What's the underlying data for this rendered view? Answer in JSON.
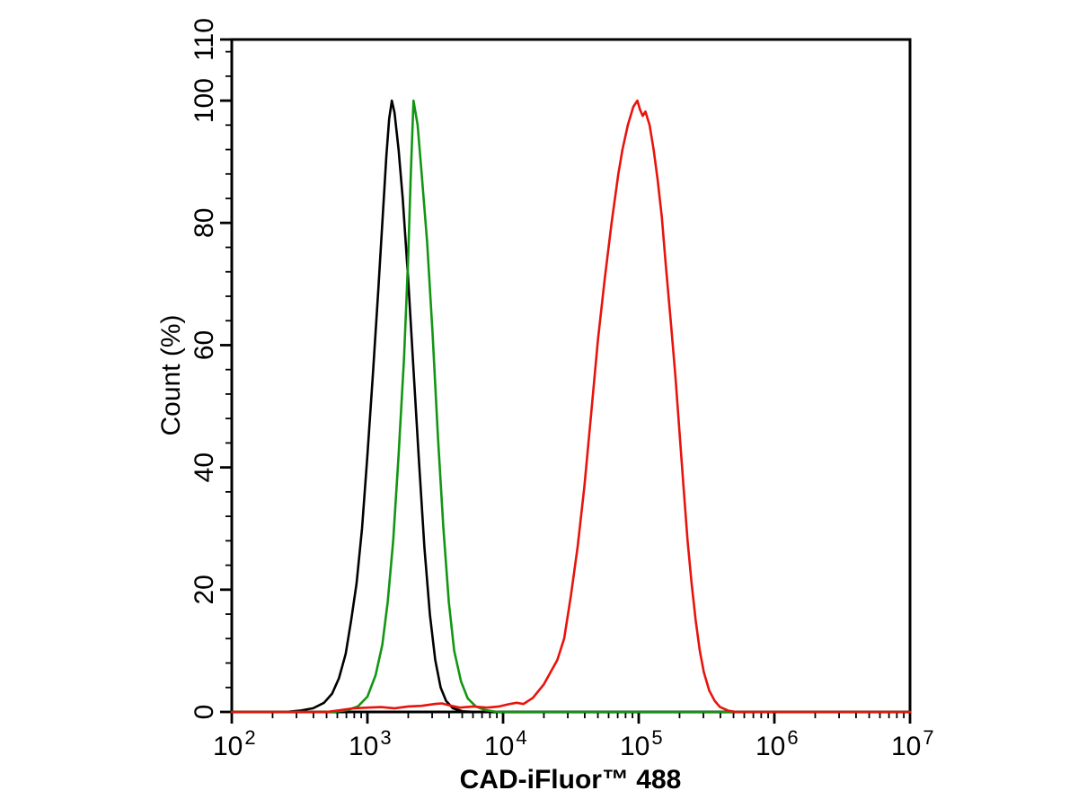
{
  "figure": {
    "background_color": "#ffffff",
    "axis_color": "#000000"
  },
  "chart_data": {
    "type": "line",
    "subtype": "flow-cytometry-histogram",
    "title": "",
    "xlabel": "CAD-iFluor™ 488",
    "ylabel": "Count  (%)",
    "x_scale": "log10",
    "x_range_exponents": [
      2,
      7
    ],
    "x_major_tick_exponents": [
      2,
      3,
      4,
      5,
      6,
      7
    ],
    "x_tick_base": "10",
    "x_minor_ticks": "log positions 2-9 within each decade",
    "ylim": [
      0,
      110
    ],
    "y_major_ticks": [
      0,
      20,
      40,
      60,
      80,
      100,
      110
    ],
    "y_minor_step": 4,
    "grid": "off",
    "legend": "none",
    "frame": "full box, ticks outward on left and bottom only",
    "series": [
      {
        "name": "black-curve",
        "color": "#000000",
        "peak_x": 1500,
        "peak_y": 100,
        "points_logx_y": [
          [
            2.0,
            0
          ],
          [
            2.4,
            0
          ],
          [
            2.5,
            0.2
          ],
          [
            2.6,
            0.6
          ],
          [
            2.68,
            1.5
          ],
          [
            2.74,
            3
          ],
          [
            2.79,
            5.5
          ],
          [
            2.84,
            9.5
          ],
          [
            2.88,
            15
          ],
          [
            2.92,
            21
          ],
          [
            2.96,
            30
          ],
          [
            3.0,
            42
          ],
          [
            3.04,
            55
          ],
          [
            3.08,
            69
          ],
          [
            3.11,
            80
          ],
          [
            3.14,
            91
          ],
          [
            3.16,
            97
          ],
          [
            3.18,
            100
          ],
          [
            3.2,
            98
          ],
          [
            3.23,
            92
          ],
          [
            3.26,
            84
          ],
          [
            3.3,
            71
          ],
          [
            3.34,
            56
          ],
          [
            3.38,
            41
          ],
          [
            3.42,
            27
          ],
          [
            3.46,
            16
          ],
          [
            3.5,
            8.5
          ],
          [
            3.54,
            4
          ],
          [
            3.58,
            1.8
          ],
          [
            3.63,
            0.6
          ],
          [
            3.7,
            0.1
          ],
          [
            3.8,
            0
          ],
          [
            7.0,
            0
          ]
        ]
      },
      {
        "name": "green-curve",
        "color": "#129612",
        "peak_x": 2200,
        "peak_y": 100,
        "points_logx_y": [
          [
            2.0,
            0
          ],
          [
            2.75,
            0
          ],
          [
            2.85,
            0.3
          ],
          [
            2.93,
            0.9
          ],
          [
            3.0,
            2.5
          ],
          [
            3.06,
            6
          ],
          [
            3.11,
            11
          ],
          [
            3.15,
            18
          ],
          [
            3.19,
            28
          ],
          [
            3.23,
            42
          ],
          [
            3.27,
            58
          ],
          [
            3.3,
            74
          ],
          [
            3.32,
            88
          ],
          [
            3.34,
            100
          ],
          [
            3.37,
            96
          ],
          [
            3.4,
            88
          ],
          [
            3.44,
            77
          ],
          [
            3.48,
            62
          ],
          [
            3.52,
            45
          ],
          [
            3.56,
            30
          ],
          [
            3.6,
            18
          ],
          [
            3.64,
            10
          ],
          [
            3.69,
            5
          ],
          [
            3.74,
            2.2
          ],
          [
            3.8,
            0.9
          ],
          [
            3.87,
            0.3
          ],
          [
            3.96,
            0
          ],
          [
            7.0,
            0
          ]
        ]
      },
      {
        "name": "red-curve",
        "color": "#e8130c",
        "peak_x": 100000,
        "peak_y": 100,
        "points_logx_y": [
          [
            2.0,
            0
          ],
          [
            2.7,
            0
          ],
          [
            2.8,
            0.3
          ],
          [
            2.9,
            0.6
          ],
          [
            3.0,
            0.7
          ],
          [
            3.1,
            0.8
          ],
          [
            3.2,
            0.6
          ],
          [
            3.3,
            0.9
          ],
          [
            3.4,
            1.0
          ],
          [
            3.5,
            1.3
          ],
          [
            3.55,
            1.4
          ],
          [
            3.6,
            1.1
          ],
          [
            3.68,
            0.7
          ],
          [
            3.78,
            0.9
          ],
          [
            3.88,
            0.7
          ],
          [
            3.97,
            0.9
          ],
          [
            4.05,
            1.3
          ],
          [
            4.1,
            1.5
          ],
          [
            4.15,
            1.3
          ],
          [
            4.22,
            2.3
          ],
          [
            4.3,
            4.5
          ],
          [
            4.4,
            8.5
          ],
          [
            4.45,
            12
          ],
          [
            4.5,
            19
          ],
          [
            4.55,
            27
          ],
          [
            4.6,
            37
          ],
          [
            4.65,
            49
          ],
          [
            4.7,
            61
          ],
          [
            4.75,
            71
          ],
          [
            4.8,
            80
          ],
          [
            4.85,
            88
          ],
          [
            4.88,
            92
          ],
          [
            4.92,
            96
          ],
          [
            4.96,
            99
          ],
          [
            4.99,
            100
          ],
          [
            5.01,
            98.5
          ],
          [
            5.03,
            97.5
          ],
          [
            5.05,
            98.2
          ],
          [
            5.08,
            96
          ],
          [
            5.11,
            92
          ],
          [
            5.14,
            87
          ],
          [
            5.17,
            81
          ],
          [
            5.2,
            73
          ],
          [
            5.24,
            63
          ],
          [
            5.27,
            55
          ],
          [
            5.3,
            46
          ],
          [
            5.33,
            37
          ],
          [
            5.36,
            28
          ],
          [
            5.39,
            21
          ],
          [
            5.42,
            15
          ],
          [
            5.45,
            10
          ],
          [
            5.48,
            6.5
          ],
          [
            5.52,
            3.5
          ],
          [
            5.56,
            1.8
          ],
          [
            5.6,
            0.8
          ],
          [
            5.66,
            0.2
          ],
          [
            5.72,
            0
          ],
          [
            7.0,
            0
          ]
        ]
      }
    ]
  }
}
